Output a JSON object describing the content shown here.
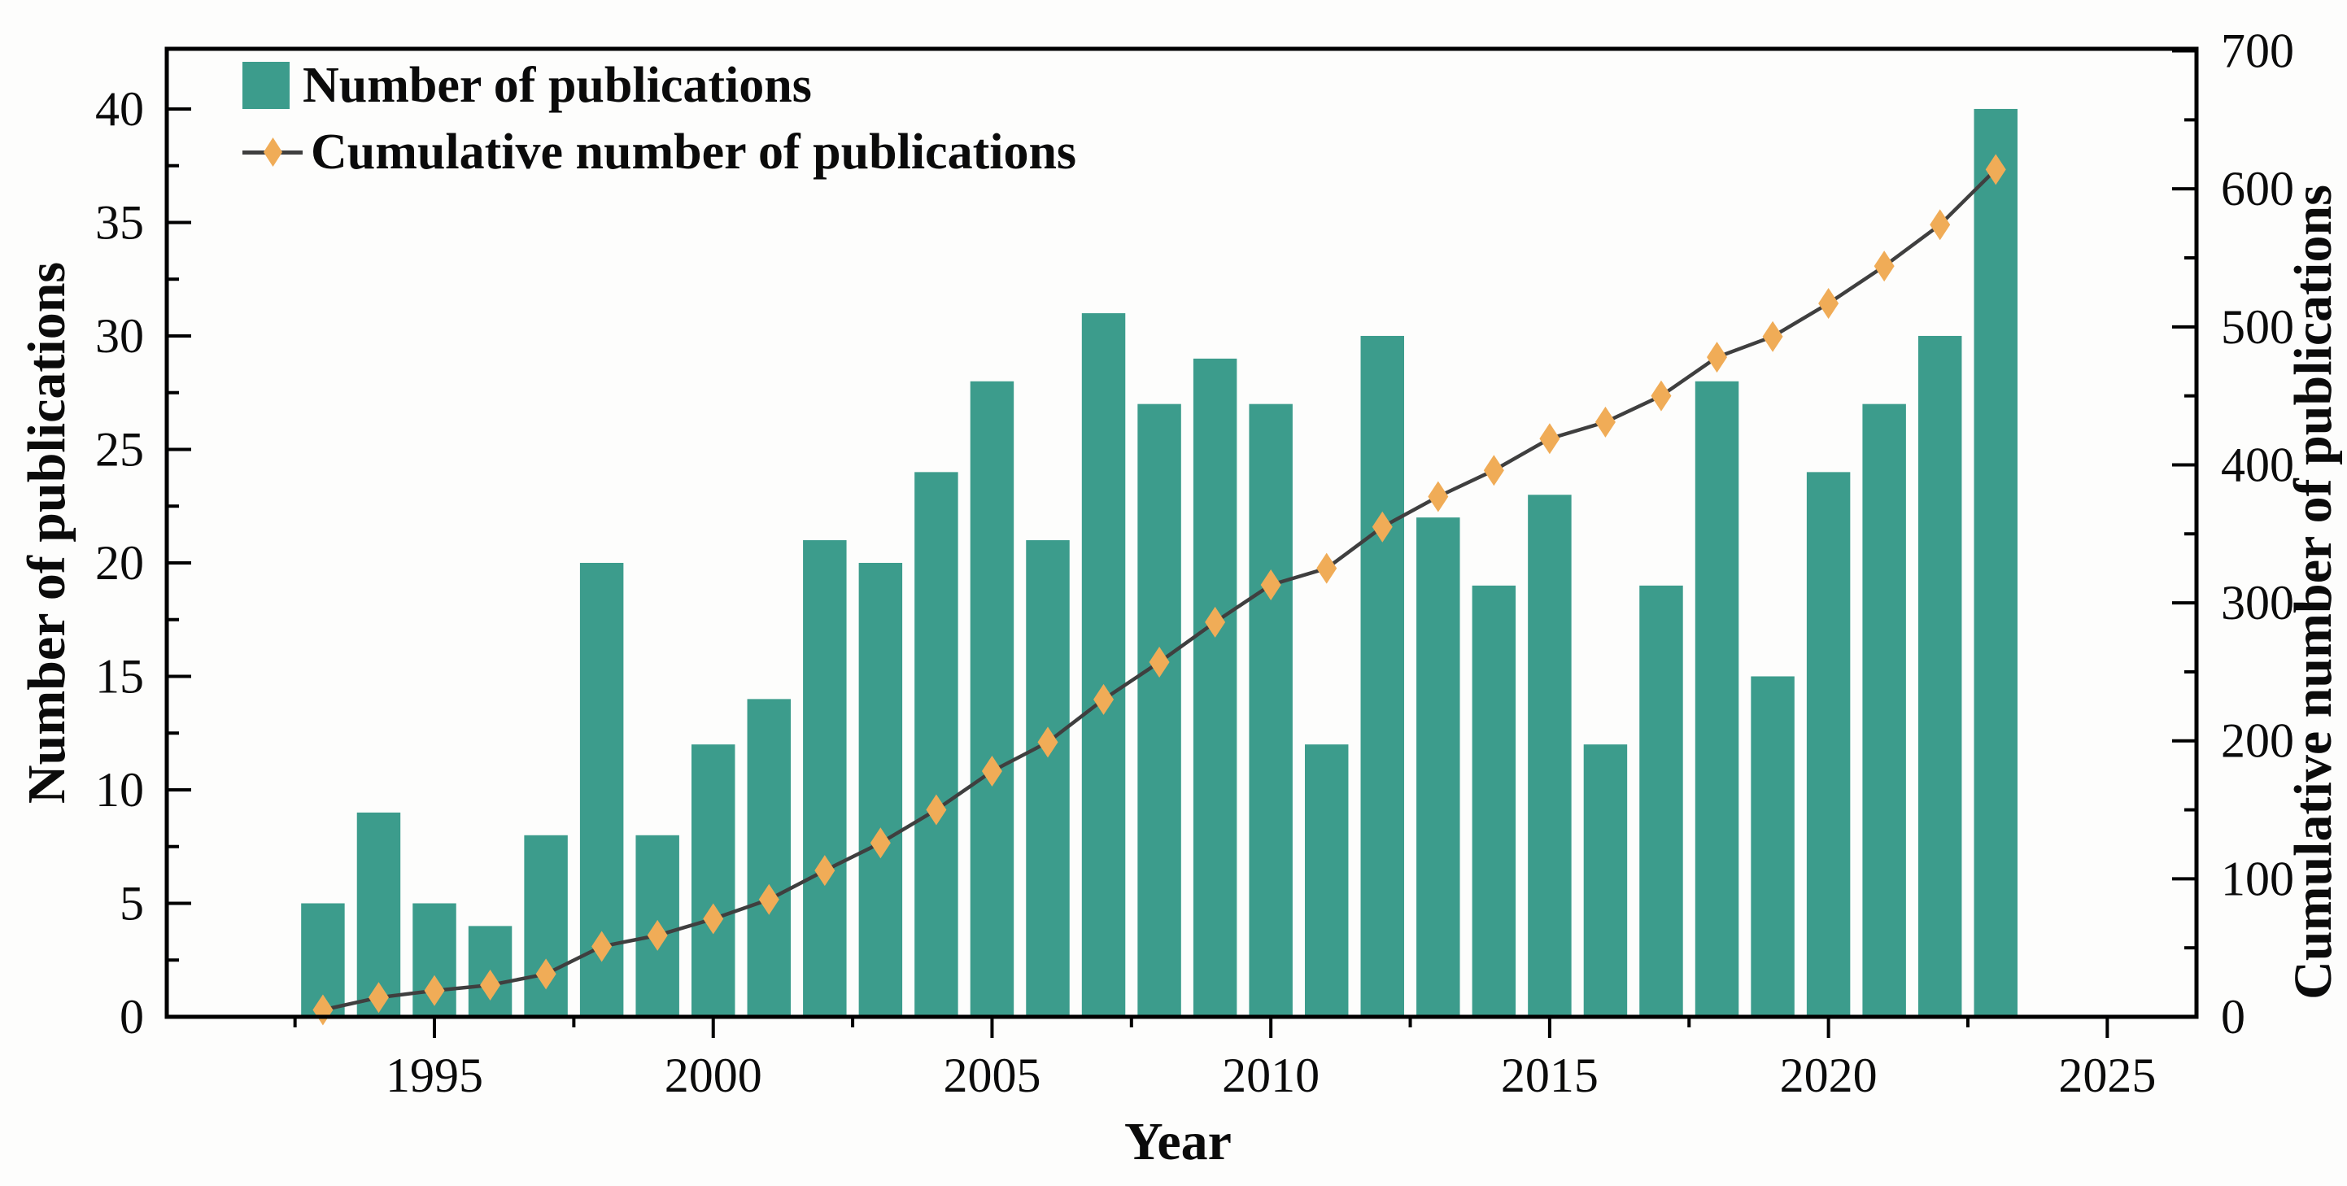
{
  "figure": {
    "colors": {
      "bar": "#3C9C8C",
      "marker": "#F0AC57",
      "line": "#3F3F3F",
      "axis": "#000000",
      "tick_text": "#0b0b0b",
      "background": "#fdfdfc"
    },
    "legend": {
      "item1_label": "Number of publications",
      "item2_label": "Cumulative number of publications"
    }
  },
  "chart_data": {
    "type": "bar",
    "subtype": "bar + cumulative line combo, dual y-axes",
    "title": "",
    "xlabel": "Year",
    "ylabel_left": "Number of publications",
    "ylabel_right": "Cumulative number of publications",
    "categories": [
      1993,
      1994,
      1995,
      1996,
      1997,
      1998,
      1999,
      2000,
      2001,
      2002,
      2003,
      2004,
      2005,
      2006,
      2007,
      2008,
      2009,
      2010,
      2011,
      2012,
      2013,
      2014,
      2015,
      2016,
      2017,
      2018,
      2019,
      2020,
      2021,
      2022,
      2023
    ],
    "series": [
      {
        "name": "Number of publications",
        "type": "bar",
        "axis": "left",
        "values": [
          5,
          9,
          5,
          4,
          8,
          20,
          8,
          12,
          14,
          21,
          20,
          24,
          28,
          21,
          31,
          27,
          29,
          27,
          12,
          30,
          22,
          19,
          23,
          12,
          19,
          28,
          15,
          24,
          27,
          30,
          40
        ]
      },
      {
        "name": "Cumulative number of publications",
        "type": "line",
        "axis": "right",
        "marker": "diamond",
        "values": [
          5,
          14,
          19,
          23,
          31,
          51,
          59,
          71,
          85,
          106,
          126,
          150,
          178,
          199,
          230,
          257,
          286,
          313,
          325,
          355,
          377,
          396,
          419,
          431,
          450,
          478,
          493,
          517,
          544,
          574,
          614
        ]
      }
    ],
    "xlim": [
      1990.2,
      2026.6
    ],
    "ylim_left": [
      0,
      42.65
    ],
    "ylim_right": [
      0,
      701.5
    ],
    "x_ticks_major": [
      1995,
      2000,
      2005,
      2010,
      2015,
      2020,
      2025
    ],
    "x_ticks_minor": [
      1992.5,
      1997.5,
      2002.5,
      2007.5,
      2012.5,
      2017.5,
      2022.5
    ],
    "y_left_ticks": [
      0,
      5,
      10,
      15,
      20,
      25,
      30,
      35,
      40
    ],
    "y_left_ticks_minor": [
      2.5,
      7.5,
      12.5,
      17.5,
      22.5,
      27.5,
      32.5,
      37.5
    ],
    "y_right_ticks": [
      0,
      100,
      200,
      300,
      400,
      500,
      600,
      700
    ],
    "y_right_ticks_minor": [
      50,
      150,
      250,
      350,
      450,
      550,
      650
    ],
    "grid": false,
    "legend_position": "top-left inside plot",
    "bar_width_years": 0.78
  }
}
